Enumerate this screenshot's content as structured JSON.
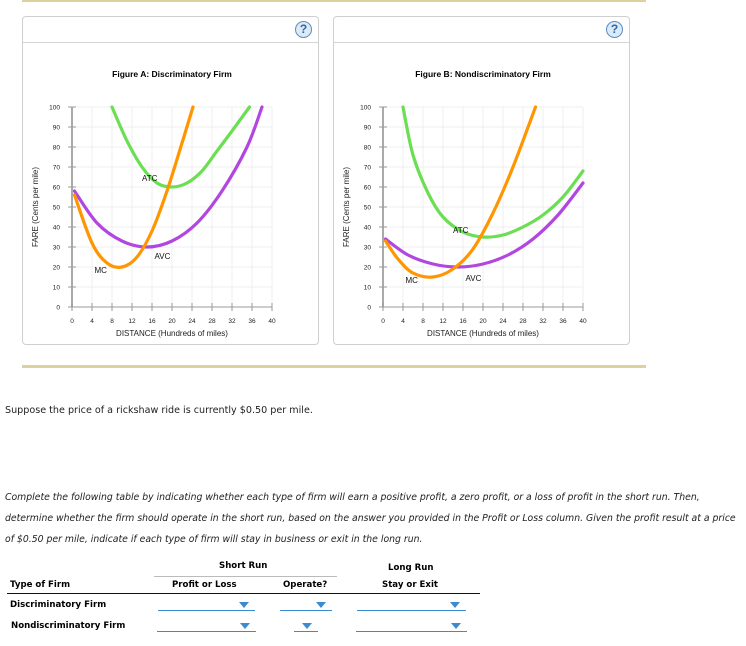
{
  "chart_data": [
    {
      "type": "line",
      "title": "Figure A: Discriminatory Firm",
      "xlabel": "DISTANCE (Hundreds of miles)",
      "ylabel": "FARE (Cents per mile)",
      "xlim": [
        0,
        40
      ],
      "ylim": [
        0,
        100
      ],
      "xticks": [
        0,
        4,
        8,
        12,
        16,
        20,
        24,
        28,
        32,
        36,
        40
      ],
      "yticks": [
        0,
        10,
        20,
        30,
        40,
        50,
        60,
        70,
        80,
        90,
        100
      ],
      "grid": true,
      "series": [
        {
          "name": "MC",
          "label": "MC",
          "color": "#ff9500",
          "minimum": [
            10,
            20
          ],
          "points": [
            [
              0.5,
              56
            ],
            [
              4,
              32
            ],
            [
              7,
              22
            ],
            [
              10,
              20
            ],
            [
              13,
              25
            ],
            [
              16,
              38
            ],
            [
              19,
              58
            ],
            [
              22,
              82
            ],
            [
              24.2,
              100
            ]
          ]
        },
        {
          "name": "AVC",
          "label": "AVC",
          "color": "#b147e0",
          "minimum": [
            15,
            30
          ],
          "points": [
            [
              0.5,
              58
            ],
            [
              5,
              42
            ],
            [
              10,
              33
            ],
            [
              15,
              30
            ],
            [
              20,
              33
            ],
            [
              25,
              42
            ],
            [
              30,
              58
            ],
            [
              35,
              80
            ],
            [
              38,
              100
            ]
          ]
        },
        {
          "name": "ATC",
          "label": "ATC",
          "color": "#6bde54",
          "minimum": [
            20,
            60
          ],
          "points": [
            [
              8,
              100
            ],
            [
              11,
              83
            ],
            [
              14,
              70
            ],
            [
              17,
              62
            ],
            [
              20,
              60
            ],
            [
              23,
              62
            ],
            [
              26,
              68
            ],
            [
              29,
              78
            ],
            [
              32,
              88
            ],
            [
              35.5,
              100
            ]
          ]
        }
      ],
      "labels": [
        {
          "text": "ATC",
          "x": 14,
          "y": 63
        },
        {
          "text": "AVC",
          "x": 16.5,
          "y": 24
        },
        {
          "text": "MC",
          "x": 4.5,
          "y": 17
        }
      ]
    },
    {
      "type": "line",
      "title": "Figure B: Nondiscriminatory Firm",
      "xlabel": "DISTANCE (Hundreds of miles)",
      "ylabel": "FARE (Cents per mile)",
      "xlim": [
        0,
        40
      ],
      "ylim": [
        0,
        100
      ],
      "xticks": [
        0,
        4,
        8,
        12,
        16,
        20,
        24,
        28,
        32,
        36,
        40
      ],
      "yticks": [
        0,
        10,
        20,
        30,
        40,
        50,
        60,
        70,
        80,
        90,
        100
      ],
      "grid": true,
      "series": [
        {
          "name": "MC",
          "label": "MC",
          "color": "#ff9500",
          "minimum": [
            10,
            15
          ],
          "points": [
            [
              0.5,
              33
            ],
            [
              3,
              24
            ],
            [
              6,
              17
            ],
            [
              10,
              15
            ],
            [
              14,
              19
            ],
            [
              18,
              29
            ],
            [
              22,
              47
            ],
            [
              26,
              70
            ],
            [
              30.5,
              100
            ]
          ]
        },
        {
          "name": "AVC",
          "label": "AVC",
          "color": "#b147e0",
          "minimum": [
            15,
            20
          ],
          "points": [
            [
              0.5,
              34
            ],
            [
              5,
              26
            ],
            [
              10,
              21.5
            ],
            [
              15,
              20
            ],
            [
              20,
              21.5
            ],
            [
              25,
              26
            ],
            [
              30,
              34
            ],
            [
              35,
              46
            ],
            [
              40,
              62
            ]
          ]
        },
        {
          "name": "ATC",
          "label": "ATC",
          "color": "#6bde54",
          "minimum": [
            20,
            35
          ],
          "points": [
            [
              4,
              100
            ],
            [
              6,
              76
            ],
            [
              9,
              57
            ],
            [
              12,
              45
            ],
            [
              16,
              37.5
            ],
            [
              20,
              35
            ],
            [
              24,
              36
            ],
            [
              28,
              40
            ],
            [
              32,
              46
            ],
            [
              36,
              55
            ],
            [
              40,
              68
            ]
          ]
        }
      ],
      "labels": [
        {
          "text": "ATC",
          "x": 14,
          "y": 37
        },
        {
          "text": "AVC",
          "x": 16.5,
          "y": 13
        },
        {
          "text": "MC",
          "x": 4.5,
          "y": 12
        }
      ]
    }
  ],
  "panels": {
    "help_label": "?"
  },
  "prompt": "Suppose the price of a rickshaw ride is currently $0.50 per mile.",
  "instructions": "Complete the following table by indicating whether each type of firm will earn a positive profit, a zero profit, or a loss of profit in the short run. Then, determine whether the firm should operate in the short run, based on the answer you provided in the Profit or Loss column. Given the profit result at a price of $0.50 per mile, indicate if each type of firm will stay in business or exit in the long run.",
  "table": {
    "group_short_run": "Short Run",
    "group_long_run": "Long Run",
    "col_type": "Type of Firm",
    "col_profit": "Profit or Loss",
    "col_operate": "Operate?",
    "col_stay": "Stay or Exit",
    "rows": [
      {
        "firm": "Discriminatory Firm",
        "profit": "",
        "operate": "",
        "stay": ""
      },
      {
        "firm": "Nondiscriminatory Firm",
        "profit": "",
        "operate": "",
        "stay": ""
      }
    ]
  },
  "colors": {
    "mc": "#ff9500",
    "avc": "#b147e0",
    "atc": "#6bde54",
    "dropdown_accent": "#3c8ad0",
    "rule_gold": "#ddd29f"
  }
}
